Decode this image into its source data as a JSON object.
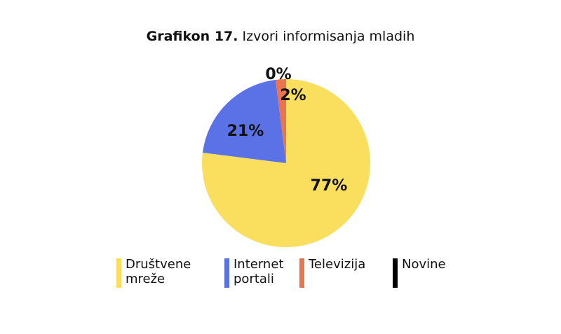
{
  "header": {
    "title_prefix": "Grafikon 17.",
    "title_text": "Izvori informisanja mladih"
  },
  "chart_data": {
    "type": "pie",
    "title": "Grafikon 17. Izvori informisanja mladih",
    "categories": [
      "Društvene mreže",
      "Internet portali",
      "Televizija",
      "Novine"
    ],
    "values": [
      77,
      21,
      2,
      0
    ],
    "labels": [
      "77%",
      "21%",
      "2%",
      "0%"
    ],
    "colors": [
      "#FADF5E",
      "#5B72E6",
      "#E9744E",
      "#000000"
    ],
    "legend_position": "bottom"
  },
  "legend": [
    {
      "line1": "Društvene",
      "line2": "mreže",
      "color": "#FADF5E"
    },
    {
      "line1": "Internet",
      "line2": "portali",
      "color": "#5B72E6"
    },
    {
      "line1": "Televizija",
      "line2": "",
      "color": "#E9744E"
    },
    {
      "line1": "Novine",
      "line2": "",
      "color": "#000000"
    }
  ]
}
